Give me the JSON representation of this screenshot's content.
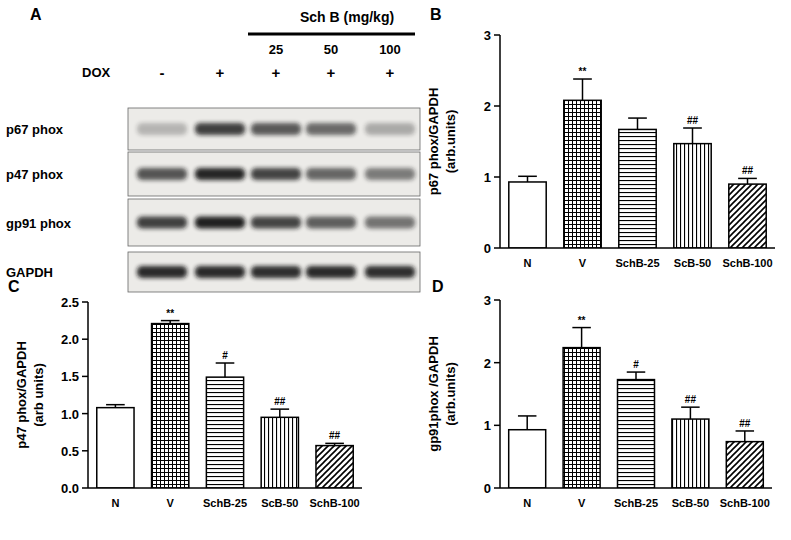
{
  "blot": {
    "label": "A",
    "dose_header": "Sch B (mg/kg)",
    "doses": [
      25,
      50,
      100
    ],
    "treatment": "DOX",
    "signs": [
      "-",
      "+",
      "+",
      "+",
      "+"
    ],
    "rows": [
      "p67 phox",
      "p47 phox",
      "gp91 phox",
      "GAPDH"
    ]
  },
  "chart_data": [
    {
      "type": "bar",
      "panel": "B",
      "y_label": [
        "p67 phox/GAPDH",
        "(arb.units)"
      ],
      "categories": [
        "N",
        "V",
        "SchB-25",
        "ScB-50",
        "SchB-100"
      ],
      "values": [
        0.93,
        2.08,
        1.67,
        1.47,
        0.9
      ],
      "errors": [
        0.08,
        0.3,
        0.16,
        0.22,
        0.08
      ],
      "annotations": [
        null,
        "**",
        null,
        "##",
        "##"
      ],
      "color": "#000000",
      "ylim": [
        0,
        3
      ],
      "yticks": [
        0,
        1,
        2,
        3
      ]
    },
    {
      "type": "bar",
      "panel": "C",
      "y_label": [
        "p47 phox/GAPDH",
        "(arb units)"
      ],
      "categories": [
        "N",
        "V",
        "SchB-25",
        "ScB-50",
        "SchB-100"
      ],
      "values": [
        1.08,
        2.21,
        1.49,
        0.95,
        0.57
      ],
      "errors": [
        0.04,
        0.04,
        0.19,
        0.11,
        0.03
      ],
      "annotations": [
        null,
        "**",
        "#",
        "##",
        "##"
      ],
      "color": "#000000",
      "ylim": [
        0,
        2.5
      ],
      "yticks": [
        {
          "value": 0,
          "label": "0.0"
        },
        0.5,
        {
          "value": 1,
          "label": "1.0"
        },
        1.5,
        {
          "value": 2,
          "label": "2.0"
        },
        2.5
      ]
    },
    {
      "type": "bar",
      "panel": "D",
      "y_label": [
        "gp91phox /GAPDH",
        "(arb.units)"
      ],
      "categories": [
        "N",
        "V",
        "SchB-25",
        "ScB-50",
        "SchB-100"
      ],
      "values": [
        0.93,
        2.24,
        1.73,
        1.1,
        0.74
      ],
      "errors": [
        0.22,
        0.32,
        0.12,
        0.19,
        0.17
      ],
      "annotations": [
        null,
        "**",
        "#",
        "##",
        "##"
      ],
      "color": "#000000",
      "ylim": [
        0,
        3
      ],
      "yticks": [
        0,
        1,
        2,
        3
      ]
    }
  ]
}
